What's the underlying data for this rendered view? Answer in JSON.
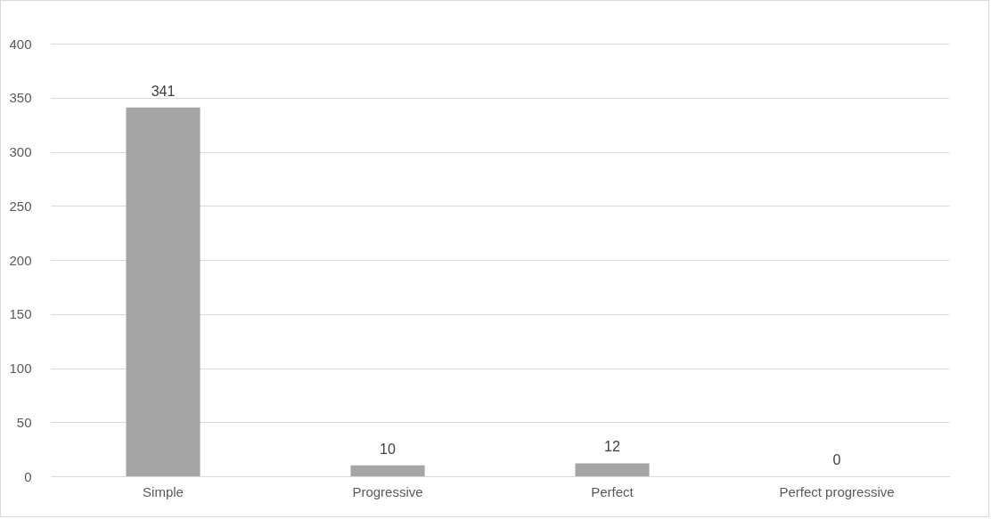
{
  "chart_data": {
    "type": "bar",
    "categories": [
      "Simple",
      "Progressive",
      "Perfect",
      "Perfect progressive"
    ],
    "values": [
      341,
      10,
      12,
      0
    ],
    "color": "#a5a5a5",
    "ylim": [
      0,
      400
    ],
    "yticks": [
      0,
      50,
      100,
      150,
      200,
      250,
      300,
      350,
      400
    ],
    "grid": "y",
    "data_labels": true
  }
}
